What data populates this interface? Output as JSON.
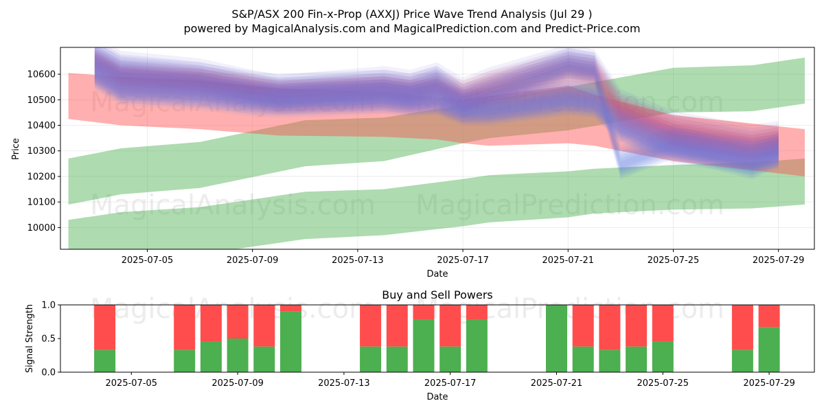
{
  "chart_data": [
    {
      "type": "area",
      "title": "S&P/ASX 200 Fin-x-Prop (AXXJ) Price Wave Trend Analysis (Jul 29 )",
      "subtitle": "powered by MagicalAnalysis.com and MagicalPrediction.com and Predict-Price.com",
      "xlabel": "Date",
      "ylabel": "Price",
      "x_dates": [
        "2025-07-02",
        "2025-07-03",
        "2025-07-04",
        "2025-07-05",
        "2025-07-06",
        "2025-07-07",
        "2025-07-08",
        "2025-07-09",
        "2025-07-10",
        "2025-07-11",
        "2025-07-12",
        "2025-07-13",
        "2025-07-14",
        "2025-07-15",
        "2025-07-16",
        "2025-07-17",
        "2025-07-18",
        "2025-07-19",
        "2025-07-20",
        "2025-07-21",
        "2025-07-22",
        "2025-07-23",
        "2025-07-24",
        "2025-07-25",
        "2025-07-26",
        "2025-07-27",
        "2025-07-28",
        "2025-07-29",
        "2025-07-30"
      ],
      "xticks": [
        "2025-07-05",
        "2025-07-09",
        "2025-07-13",
        "2025-07-17",
        "2025-07-21",
        "2025-07-25",
        "2025-07-29"
      ],
      "yticks": [
        10000,
        10100,
        10200,
        10300,
        10400,
        10500,
        10600
      ],
      "ylim": [
        9915,
        10705
      ],
      "grid": true,
      "watermarks": [
        "MagicalAnalysis.com",
        "MagicalPrediction.com"
      ],
      "bands": [
        {
          "name": "green trend band 1",
          "color": "#4caf50",
          "x": [
            "2025-07-02",
            "2025-07-04",
            "2025-07-07",
            "2025-07-11",
            "2025-07-14",
            "2025-07-17",
            "2025-07-18",
            "2025-07-21",
            "2025-07-25",
            "2025-07-28",
            "2025-07-30"
          ],
          "upper": [
            10270,
            10310,
            10335,
            10420,
            10430,
            10480,
            10500,
            10550,
            10625,
            10635,
            10665
          ],
          "lower": [
            10090,
            10130,
            10155,
            10240,
            10260,
            10330,
            10350,
            10380,
            10450,
            10455,
            10485
          ]
        },
        {
          "name": "green trend band 2",
          "color": "#4caf50",
          "x": [
            "2025-07-02",
            "2025-07-04",
            "2025-07-07",
            "2025-07-11",
            "2025-07-14",
            "2025-07-17",
            "2025-07-18",
            "2025-07-21",
            "2025-07-22",
            "2025-07-25",
            "2025-07-28",
            "2025-07-30"
          ],
          "upper": [
            10030,
            10060,
            10080,
            10140,
            10150,
            10190,
            10205,
            10220,
            10230,
            10245,
            10255,
            10270
          ],
          "lower": [
            9850,
            9875,
            9895,
            9955,
            9970,
            10005,
            10020,
            10040,
            10055,
            10070,
            10075,
            10090
          ]
        },
        {
          "name": "red trend band",
          "color": "#ff4d4d",
          "x": [
            "2025-07-02",
            "2025-07-04",
            "2025-07-07",
            "2025-07-10",
            "2025-07-14",
            "2025-07-16",
            "2025-07-17",
            "2025-07-18",
            "2025-07-21",
            "2025-07-22",
            "2025-07-25",
            "2025-07-30"
          ],
          "upper": [
            10605,
            10590,
            10575,
            10545,
            10530,
            10510,
            10500,
            10515,
            10555,
            10520,
            10440,
            10385
          ],
          "lower": [
            10425,
            10400,
            10385,
            10360,
            10355,
            10345,
            10330,
            10320,
            10330,
            10320,
            10260,
            10200
          ]
        }
      ],
      "waves": {
        "x": [
          "2025-07-03",
          "2025-07-04",
          "2025-07-07",
          "2025-07-09",
          "2025-07-10",
          "2025-07-14",
          "2025-07-15",
          "2025-07-16",
          "2025-07-17",
          "2025-07-18",
          "2025-07-21",
          "2025-07-22",
          "2025-07-23",
          "2025-07-25",
          "2025-07-28",
          "2025-07-29"
        ],
        "series": [
          {
            "name": "wave 1",
            "color": "#6a5acd",
            "values": [
              10680,
              10620,
              10590,
              10545,
              10525,
              10560,
              10545,
              10575,
              10515,
              10555,
              10645,
              10625,
              10470,
              10385,
              10330,
              10345
            ]
          },
          {
            "name": "wave 2",
            "color": "#ff6666",
            "values": [
              10630,
              10580,
              10560,
              10530,
              10510,
              10530,
              10520,
              10540,
              10505,
              10540,
              10615,
              10600,
              10450,
              10360,
              10300,
              10320
            ]
          },
          {
            "name": "wave 3",
            "color": "#4169e1",
            "values": [
              10650,
              10600,
              10575,
              10540,
              10530,
              10545,
              10530,
              10560,
              10490,
              10520,
              10630,
              10615,
              10250,
              10330,
              10250,
              10300
            ]
          },
          {
            "name": "wave 4",
            "color": "#b05080",
            "values": [
              10620,
              10560,
              10550,
              10520,
              10505,
              10520,
              10505,
              10510,
              10470,
              10475,
              10520,
              10510,
              10420,
              10335,
              10290,
              10310
            ]
          },
          {
            "name": "wave 5",
            "color": "#9370db",
            "values": [
              10610,
              10550,
              10530,
              10505,
              10500,
              10510,
              10500,
              10505,
              10465,
              10465,
              10505,
              10495,
              10400,
              10320,
              10280,
              10295
            ]
          },
          {
            "name": "wave 6",
            "color": "#6495ed",
            "values": [
              10600,
              10540,
              10520,
              10495,
              10490,
              10505,
              10495,
              10500,
              10460,
              10460,
              10500,
              10490,
              10390,
              10310,
              10270,
              10285
            ]
          }
        ]
      }
    },
    {
      "type": "bar",
      "title": "Buy and Sell Powers",
      "xlabel": "Date",
      "ylabel": "Signal Strength",
      "ylim": [
        0,
        1
      ],
      "yticks": [
        "0.0",
        "0.5",
        "1.0"
      ],
      "xticks": [
        "2025-07-05",
        "2025-07-09",
        "2025-07-13",
        "2025-07-17",
        "2025-07-21",
        "2025-07-25",
        "2025-07-29"
      ],
      "series": [
        {
          "name": "Buy",
          "color": "#4caf50"
        },
        {
          "name": "Sell",
          "color": "#ff4d4d"
        }
      ],
      "dates": [
        "2025-07-04",
        "2025-07-07",
        "2025-07-08",
        "2025-07-09",
        "2025-07-10",
        "2025-07-11",
        "2025-07-14",
        "2025-07-15",
        "2025-07-16",
        "2025-07-17",
        "2025-07-18",
        "2025-07-21",
        "2025-07-22",
        "2025-07-23",
        "2025-07-24",
        "2025-07-25",
        "2025-07-28",
        "2025-07-29"
      ],
      "buy": [
        0.33,
        0.33,
        0.45,
        0.5,
        0.38,
        0.9,
        0.38,
        0.38,
        0.78,
        0.38,
        0.78,
        1.0,
        0.38,
        0.33,
        0.38,
        0.45,
        0.33,
        0.67
      ],
      "watermarks": [
        "MagicalAnalysis.com",
        "MagicalPrediction.com"
      ]
    }
  ]
}
